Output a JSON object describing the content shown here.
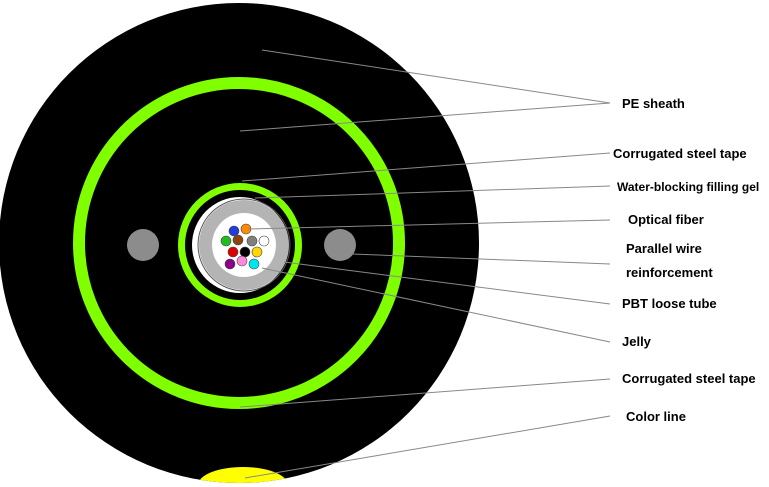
{
  "labels": {
    "pe_sheath": "PE sheath",
    "corrugated_steel_tape_top": "Corrugated steel tape",
    "water_blocking_gel": "Water-blocking filling gel",
    "optical_fiber": "Optical fiber",
    "parallel_wire_line1": "Parallel wire",
    "parallel_wire_line2": "reinforcement",
    "pbt_loose_tube": "PBT loose tube",
    "jelly": "Jelly",
    "corrugated_steel_tape_bottom": "Corrugated steel tape",
    "color_line": "Color line"
  },
  "colors": {
    "sheath": "#000000",
    "steel_tape": "#7fff00",
    "wire": "#8c8c8c",
    "loose_tube": "#b4b4b4",
    "color_line": "#ffff00"
  },
  "fiber_colors": [
    "#1f3fd6",
    "#ff8c00",
    "#22bb22",
    "#8b4513",
    "#808080",
    "#ffffff",
    "#dd0000",
    "#000000",
    "#ffd700",
    "#8b008b",
    "#ff88dd",
    "#00e5ee"
  ]
}
